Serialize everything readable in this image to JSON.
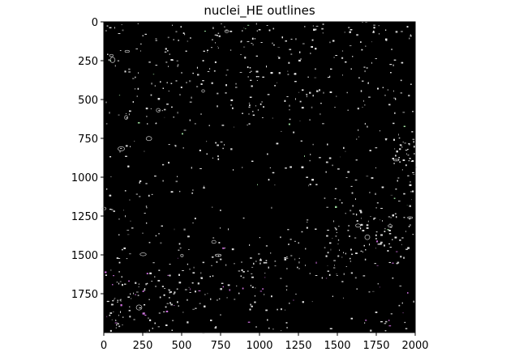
{
  "chart_data": {
    "type": "heatmap",
    "title": "nuclei_HE outlines",
    "xlabel": "",
    "ylabel": "",
    "xlim": [
      0,
      2000
    ],
    "ylim": [
      2000,
      0
    ],
    "xticks": [
      0,
      250,
      500,
      750,
      1000,
      1250,
      1500,
      1750,
      2000
    ],
    "yticks": [
      0,
      250,
      500,
      750,
      1000,
      1250,
      1500,
      1750
    ],
    "background": "#000000",
    "colors": {
      "outline": "#e6e6e6",
      "outline_alt": "#d070e0",
      "outline_green": "#9fe0a0"
    },
    "grid": false
  }
}
